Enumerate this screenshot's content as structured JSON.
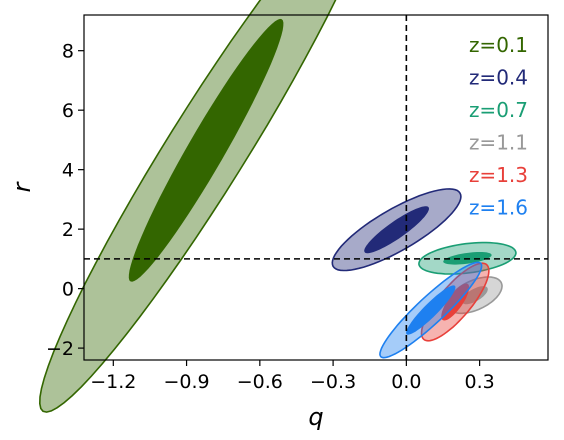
{
  "chart_data": {
    "type": "contour",
    "xlabel": "q",
    "ylabel": "r",
    "xlim": [
      -1.32,
      0.58
    ],
    "ylim": [
      -2.4,
      9.2
    ],
    "x_ticks": [
      -1.2,
      -0.9,
      -0.6,
      -0.3,
      0.0,
      0.3
    ],
    "x_tick_labels": [
      "−1.2",
      "−0.9",
      "−0.6",
      "−0.3",
      "0.0",
      "0.3"
    ],
    "y_ticks": [
      -2,
      0,
      2,
      4,
      6,
      8
    ],
    "y_tick_labels": [
      "−2",
      "0",
      "2",
      "4",
      "6",
      "8"
    ],
    "reference_lines": {
      "q": 0.0,
      "r": 1.0,
      "style": "dashed"
    },
    "legend_placement": "top-right",
    "grid": false,
    "series": [
      {
        "name": "z=0.1",
        "color": "#336600",
        "center": [
          -0.82,
          4.65
        ],
        "inner": {
          "a": 0.62,
          "b": 0.075,
          "angle_deg": 60
        },
        "outer": {
          "a": 1.26,
          "b": 0.16,
          "angle_deg": 58
        }
      },
      {
        "name": "z=0.4",
        "color": "#222a78",
        "center": [
          -0.04,
          1.98
        ],
        "inner": {
          "a": 0.16,
          "b": 0.035,
          "angle_deg": 35
        },
        "outer": {
          "a": 0.3,
          "b": 0.085,
          "angle_deg": 30
        }
      },
      {
        "name": "z=0.7",
        "color": "#1a9e74",
        "center": [
          0.25,
          1.02
        ],
        "inner": {
          "a": 0.1,
          "b": 0.022,
          "angle_deg": 8
        },
        "outer": {
          "a": 0.2,
          "b": 0.06,
          "angle_deg": 7
        }
      },
      {
        "name": "z=1.1",
        "color": "#999999",
        "center": [
          0.28,
          -0.22
        ],
        "inner": {
          "a": 0.06,
          "b": 0.025,
          "angle_deg": 30
        },
        "outer": {
          "a": 0.12,
          "b": 0.06,
          "angle_deg": 25
        }
      },
      {
        "name": "z=1.3",
        "color": "#e8403a",
        "center": [
          0.2,
          -0.45
        ],
        "inner": {
          "a": 0.09,
          "b": 0.03,
          "angle_deg": 55
        },
        "outer": {
          "a": 0.2,
          "b": 0.065,
          "angle_deg": 50
        }
      },
      {
        "name": "z=1.6",
        "color": "#1e80f0",
        "center": [
          0.1,
          -0.72
        ],
        "inner": {
          "a": 0.14,
          "b": 0.028,
          "angle_deg": 45
        },
        "outer": {
          "a": 0.28,
          "b": 0.055,
          "angle_deg": 43
        }
      }
    ]
  }
}
